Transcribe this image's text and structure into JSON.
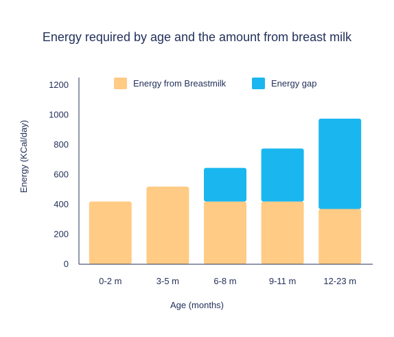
{
  "chart_data": {
    "type": "bar",
    "stacked": true,
    "title": "Energy required by age and the amount from breast milk",
    "xlabel": "Age (months)",
    "ylabel": "Energy (KCal/day)",
    "categories": [
      "0-2 m",
      "3-5 m",
      "6-8 m",
      "9-11 m",
      "12-23 m"
    ],
    "series": [
      {
        "name": "Energy from Breastmilk",
        "color": "#FFCB85",
        "values": [
          420,
          520,
          420,
          420,
          370
        ]
      },
      {
        "name": "Energy gap",
        "color": "#1AB6F0",
        "values": [
          0,
          0,
          225,
          355,
          605
        ]
      }
    ],
    "ylim": [
      0,
      1250
    ],
    "yticks": [
      0,
      200,
      400,
      600,
      800,
      1000,
      1200
    ],
    "legend_position": "top",
    "grid": false
  }
}
